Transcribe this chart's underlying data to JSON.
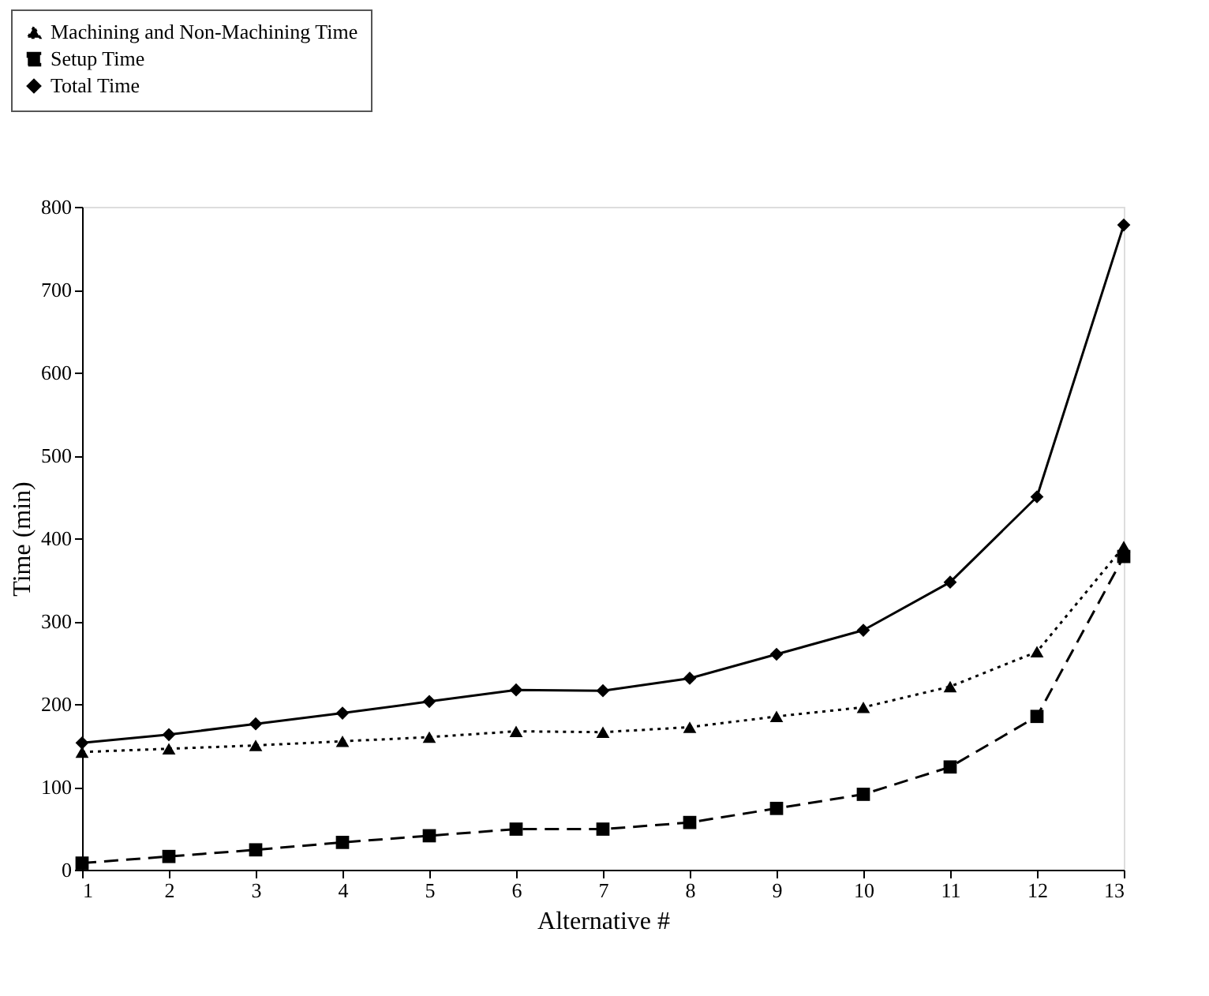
{
  "chart_data": {
    "type": "line",
    "xlabel": "Alternative #",
    "ylabel": "Time (min)",
    "x": [
      1,
      2,
      3,
      4,
      5,
      6,
      7,
      8,
      9,
      10,
      11,
      12,
      13
    ],
    "xlim": [
      1,
      13
    ],
    "xticks": [
      1,
      2,
      3,
      4,
      5,
      6,
      7,
      8,
      9,
      10,
      11,
      12,
      13
    ],
    "ylim": [
      0,
      800
    ],
    "yticks": [
      0,
      100,
      200,
      300,
      400,
      500,
      600,
      700,
      800
    ],
    "grid": false,
    "legend": "top left",
    "series": [
      {
        "name": "Machining and Non-Machining Time",
        "color": "#000000",
        "marker": "triangle",
        "line_style": "dotted",
        "values": [
          142,
          146,
          150,
          155,
          160,
          167,
          166,
          172,
          185,
          196,
          221,
          263,
          390
        ]
      },
      {
        "name": "Setup Time",
        "color": "#000000",
        "marker": "square",
        "line_style": "dashed",
        "values": [
          8,
          16,
          24,
          33,
          41,
          49,
          49,
          57,
          74,
          91,
          124,
          185,
          378
        ]
      },
      {
        "name": "Total Time",
        "color": "#000000",
        "marker": "diamond",
        "line_style": "solid",
        "values": [
          153,
          163,
          176,
          189,
          203,
          217,
          216,
          231,
          260,
          289,
          347,
          450,
          778
        ]
      }
    ]
  }
}
